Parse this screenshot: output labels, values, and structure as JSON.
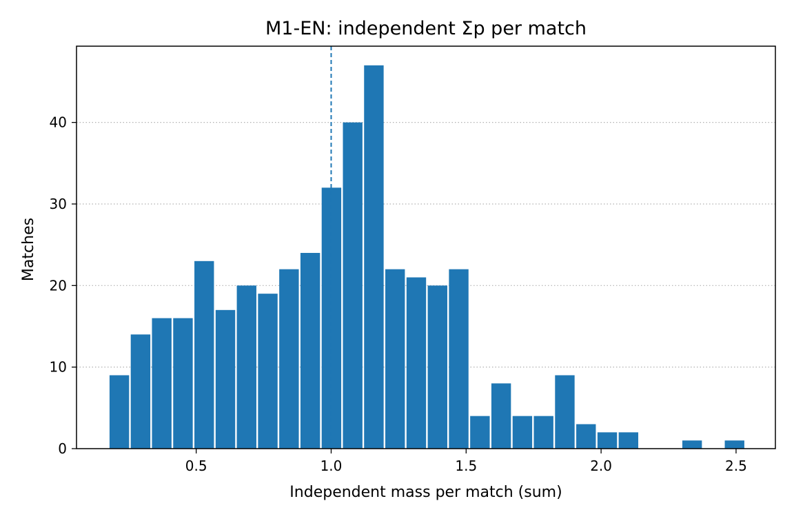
{
  "chart_data": {
    "type": "bar",
    "title": "M1-EN: independent Σp per match",
    "xlabel": "Independent mass per match (sum)",
    "ylabel": "Matches",
    "bin_width": 0.0786,
    "bins": [
      {
        "x": 0.2152,
        "count": 9
      },
      {
        "x": 0.2938,
        "count": 14
      },
      {
        "x": 0.3724,
        "count": 16
      },
      {
        "x": 0.451,
        "count": 16
      },
      {
        "x": 0.5296,
        "count": 23
      },
      {
        "x": 0.6082,
        "count": 17
      },
      {
        "x": 0.6867,
        "count": 20
      },
      {
        "x": 0.7653,
        "count": 19
      },
      {
        "x": 0.8439,
        "count": 22
      },
      {
        "x": 0.9225,
        "count": 24
      },
      {
        "x": 1.0011,
        "count": 32
      },
      {
        "x": 1.0797,
        "count": 40
      },
      {
        "x": 1.1582,
        "count": 47
      },
      {
        "x": 1.2368,
        "count": 22
      },
      {
        "x": 1.3154,
        "count": 21
      },
      {
        "x": 1.394,
        "count": 20
      },
      {
        "x": 1.4726,
        "count": 22
      },
      {
        "x": 1.5512,
        "count": 4
      },
      {
        "x": 1.6298,
        "count": 8
      },
      {
        "x": 1.7084,
        "count": 4
      },
      {
        "x": 1.787,
        "count": 4
      },
      {
        "x": 1.8656,
        "count": 9
      },
      {
        "x": 1.9442,
        "count": 3
      },
      {
        "x": 2.0228,
        "count": 2
      },
      {
        "x": 2.1014,
        "count": 2
      },
      {
        "x": 2.18,
        "count": 0
      },
      {
        "x": 2.2586,
        "count": 0
      },
      {
        "x": 2.3372,
        "count": 1
      },
      {
        "x": 2.4158,
        "count": 0
      },
      {
        "x": 2.4944,
        "count": 1
      }
    ],
    "xlim": [
      0.0566,
      2.6457
    ],
    "ylim": [
      0,
      49.35
    ],
    "xticks": [
      {
        "value": 0.5,
        "label": "0.5"
      },
      {
        "value": 1.0,
        "label": "1.0"
      },
      {
        "value": 1.5,
        "label": "1.5"
      },
      {
        "value": 2.0,
        "label": "2.0"
      },
      {
        "value": 2.5,
        "label": "2.5"
      }
    ],
    "yticks": [
      {
        "value": 0,
        "label": "0"
      },
      {
        "value": 10,
        "label": "10"
      },
      {
        "value": 20,
        "label": "20"
      },
      {
        "value": 30,
        "label": "30"
      },
      {
        "value": 40,
        "label": "40"
      }
    ],
    "reference_line": {
      "x": 1.0,
      "style": "dashed"
    },
    "grid": "y-dotted",
    "colors": {
      "bar": "#1f77b4",
      "reference_line": "#1f77b4",
      "grid": "#b0b0b0"
    }
  }
}
